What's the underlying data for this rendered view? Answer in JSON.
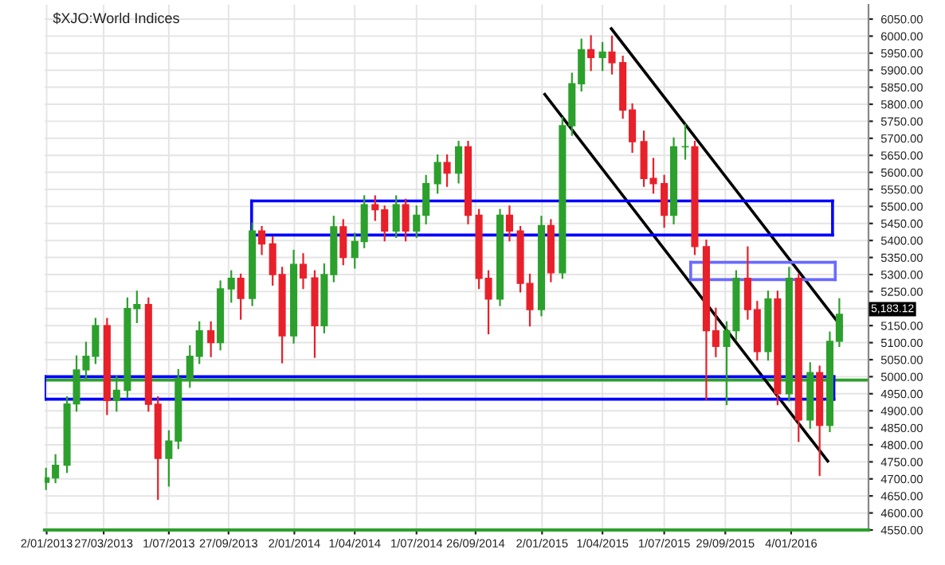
{
  "chart_data": {
    "type": "candlestick",
    "title": "$XJO:World Indices",
    "x": [
      "2013-01-01",
      "2013-01-15",
      "2013-02-01",
      "2013-02-15",
      "2013-03-01",
      "2013-03-15",
      "2013-04-01",
      "2013-04-15",
      "2013-05-01",
      "2013-05-15",
      "2013-06-01",
      "2013-06-15",
      "2013-07-01",
      "2013-07-15",
      "2013-08-01",
      "2013-08-15",
      "2013-09-01",
      "2013-09-15",
      "2013-10-01",
      "2013-10-15",
      "2013-11-01",
      "2013-11-15",
      "2013-12-01",
      "2013-12-15",
      "2014-01-01",
      "2014-01-15",
      "2014-02-01",
      "2014-02-15",
      "2014-03-01",
      "2014-03-15",
      "2014-04-01",
      "2014-04-15",
      "2014-05-01",
      "2014-05-15",
      "2014-06-01",
      "2014-06-15",
      "2014-07-01",
      "2014-07-15",
      "2014-08-01",
      "2014-08-15",
      "2014-09-01",
      "2014-09-15",
      "2014-10-01",
      "2014-10-15",
      "2014-11-01",
      "2014-11-15",
      "2014-12-01",
      "2014-12-15",
      "2015-01-01",
      "2015-01-15",
      "2015-02-01",
      "2015-02-15",
      "2015-03-01",
      "2015-03-15",
      "2015-04-01",
      "2015-04-15",
      "2015-05-01",
      "2015-05-15",
      "2015-06-01",
      "2015-06-15",
      "2015-07-01",
      "2015-07-15",
      "2015-08-01",
      "2015-08-15",
      "2015-09-01",
      "2015-09-15",
      "2015-10-01",
      "2015-10-15",
      "2015-11-01",
      "2015-11-15",
      "2015-12-01",
      "2015-12-15",
      "2016-01-01",
      "2016-01-15",
      "2016-02-01",
      "2016-02-15",
      "2016-03-01",
      "2016-03-15"
    ],
    "ohlc": [
      [
        4690,
        4730,
        4670,
        4703
      ],
      [
        4703,
        4770,
        4690,
        4740
      ],
      [
        4740,
        4940,
        4720,
        4920
      ],
      [
        4920,
        5060,
        4900,
        5020
      ],
      [
        5020,
        5100,
        4990,
        5060
      ],
      [
        5060,
        5170,
        5040,
        5150
      ],
      [
        5150,
        5170,
        4890,
        4930
      ],
      [
        4930,
        5000,
        4900,
        4960
      ],
      [
        4960,
        5230,
        4940,
        5200
      ],
      [
        5200,
        5250,
        5160,
        5212
      ],
      [
        5212,
        5230,
        4900,
        4919
      ],
      [
        4919,
        4940,
        4641,
        4760
      ],
      [
        4760,
        4840,
        4680,
        4811
      ],
      [
        4811,
        5020,
        4790,
        4996
      ],
      [
        4996,
        5090,
        4970,
        5060
      ],
      [
        5060,
        5160,
        5040,
        5135
      ],
      [
        5135,
        5160,
        5060,
        5100
      ],
      [
        5100,
        5280,
        5080,
        5258
      ],
      [
        5258,
        5310,
        5220,
        5289
      ],
      [
        5289,
        5300,
        5170,
        5230
      ],
      [
        5230,
        5450,
        5210,
        5428
      ],
      [
        5428,
        5440,
        5360,
        5390
      ],
      [
        5390,
        5410,
        5270,
        5300
      ],
      [
        5300,
        5320,
        5042,
        5120
      ],
      [
        5120,
        5370,
        5100,
        5330
      ],
      [
        5330,
        5360,
        5260,
        5290
      ],
      [
        5290,
        5310,
        5058,
        5150
      ],
      [
        5150,
        5330,
        5130,
        5300
      ],
      [
        5300,
        5470,
        5280,
        5440
      ],
      [
        5440,
        5460,
        5330,
        5350
      ],
      [
        5350,
        5420,
        5320,
        5397
      ],
      [
        5397,
        5530,
        5380,
        5505
      ],
      [
        5505,
        5530,
        5460,
        5490
      ],
      [
        5490,
        5500,
        5400,
        5428
      ],
      [
        5428,
        5530,
        5410,
        5505
      ],
      [
        5505,
        5520,
        5400,
        5428
      ],
      [
        5428,
        5500,
        5410,
        5474
      ],
      [
        5474,
        5590,
        5450,
        5567
      ],
      [
        5567,
        5650,
        5540,
        5629
      ],
      [
        5629,
        5650,
        5560,
        5598
      ],
      [
        5598,
        5690,
        5570,
        5675
      ],
      [
        5675,
        5690,
        5450,
        5474
      ],
      [
        5474,
        5490,
        5260,
        5289
      ],
      [
        5289,
        5310,
        5127,
        5228
      ],
      [
        5228,
        5490,
        5210,
        5474
      ],
      [
        5474,
        5500,
        5400,
        5428
      ],
      [
        5428,
        5440,
        5250,
        5274
      ],
      [
        5274,
        5300,
        5150,
        5197
      ],
      [
        5197,
        5470,
        5180,
        5444
      ],
      [
        5444,
        5460,
        5280,
        5305
      ],
      [
        5305,
        5760,
        5290,
        5737
      ],
      [
        5737,
        5890,
        5710,
        5860
      ],
      [
        5860,
        5990,
        5840,
        5960
      ],
      [
        5960,
        6000,
        5900,
        5937
      ],
      [
        5937,
        5980,
        5900,
        5953
      ],
      [
        5953,
        5999,
        5890,
        5922
      ],
      [
        5922,
        5940,
        5760,
        5783
      ],
      [
        5783,
        5800,
        5660,
        5690
      ],
      [
        5690,
        5720,
        5560,
        5582
      ],
      [
        5582,
        5640,
        5540,
        5567
      ],
      [
        5567,
        5590,
        5440,
        5474
      ],
      [
        5474,
        5700,
        5450,
        5675
      ],
      [
        5675,
        5740,
        5640,
        5675
      ],
      [
        5675,
        5690,
        5360,
        5382
      ],
      [
        5382,
        5400,
        4934,
        5135
      ],
      [
        5135,
        5200,
        5060,
        5089
      ],
      [
        5089,
        5160,
        4919,
        5135
      ],
      [
        5135,
        5310,
        5110,
        5289
      ],
      [
        5289,
        5380,
        5170,
        5197
      ],
      [
        5197,
        5220,
        5050,
        5074
      ],
      [
        5074,
        5250,
        5050,
        5228
      ],
      [
        5228,
        5250,
        4919,
        4950
      ],
      [
        4950,
        5320,
        4930,
        5289
      ],
      [
        5289,
        5300,
        4811,
        4873
      ],
      [
        4873,
        5040,
        4850,
        5012
      ],
      [
        5012,
        5030,
        4711,
        4857
      ],
      [
        4857,
        5130,
        4840,
        5104
      ],
      [
        5104,
        5228,
        5090,
        5183.12
      ]
    ],
    "colors": [
      "#2ca02c",
      "#2ca02c",
      "#2ca02c",
      "#2ca02c",
      "#2ca02c",
      "#2ca02c",
      "#e8202a",
      "#2ca02c",
      "#2ca02c",
      "#2ca02c",
      "#e8202a",
      "#e8202a",
      "#2ca02c",
      "#2ca02c",
      "#2ca02c",
      "#2ca02c",
      "#e8202a",
      "#2ca02c",
      "#2ca02c",
      "#e8202a",
      "#2ca02c",
      "#e8202a",
      "#e8202a",
      "#e8202a",
      "#2ca02c",
      "#e8202a",
      "#e8202a",
      "#2ca02c",
      "#2ca02c",
      "#e8202a",
      "#2ca02c",
      "#2ca02c",
      "#e8202a",
      "#e8202a",
      "#2ca02c",
      "#e8202a",
      "#2ca02c",
      "#2ca02c",
      "#2ca02c",
      "#e8202a",
      "#2ca02c",
      "#e8202a",
      "#e8202a",
      "#e8202a",
      "#2ca02c",
      "#e8202a",
      "#e8202a",
      "#e8202a",
      "#2ca02c",
      "#e8202a",
      "#2ca02c",
      "#2ca02c",
      "#2ca02c",
      "#e8202a",
      "#2ca02c",
      "#e8202a",
      "#e8202a",
      "#e8202a",
      "#e8202a",
      "#e8202a",
      "#e8202a",
      "#2ca02c",
      "#2ca02c",
      "#e8202a",
      "#e8202a",
      "#e8202a",
      "#2ca02c",
      "#2ca02c",
      "#e8202a",
      "#e8202a",
      "#2ca02c",
      "#e8202a",
      "#2ca02c",
      "#e8202a",
      "#2ca02c",
      "#e8202a",
      "#2ca02c",
      "#2ca02c"
    ],
    "series": [
      {
        "type": "line",
        "color": "#000000",
        "x": [
          "2015-04-14",
          "2016-03-18"
        ],
        "values": [
          6022,
          5147
        ]
      },
      {
        "type": "line",
        "color": "#000000",
        "x": [
          "2015-01-06",
          "2016-02-27"
        ],
        "values": [
          5829,
          4752
        ]
      },
      {
        "type": "line",
        "color": "#0000ff",
        "x": [
          "2013-10-31",
          "2016-03-05"
        ],
        "values": [
          5516,
          5516
        ]
      },
      {
        "type": "line",
        "color": "#0000ff",
        "x": [
          "2013-10-31",
          "2016-03-05"
        ],
        "values": [
          5416,
          5416
        ]
      },
      {
        "type": "line",
        "color": "#6a6aff",
        "x": [
          "2015-08-09",
          "2016-03-09"
        ],
        "values": [
          5336,
          5336
        ]
      },
      {
        "type": "line",
        "color": "#6a6aff",
        "x": [
          "2015-08-09",
          "2016-03-09"
        ],
        "values": [
          5285,
          5285
        ]
      },
      {
        "type": "line",
        "color": "#0000ff",
        "x": [
          "2012-12-30",
          "2016-03-07"
        ],
        "values": [
          5000,
          5000
        ]
      },
      {
        "type": "line",
        "color": "#0000ff",
        "x": [
          "2012-12-30",
          "2016-03-07"
        ],
        "values": [
          4934,
          4934
        ]
      }
    ],
    "ref_lines": [
      {
        "axis": "y",
        "value": 4990,
        "color": "#2ca02c"
      }
    ],
    "annotations": [
      {
        "text": "5,183.12",
        "x": "2016-03-15",
        "y": 5183.12
      }
    ],
    "xlim": [
      "2012-12-30",
      "2016-04-27"
    ],
    "xticks": [
      {
        "value": "2013-01-02",
        "label": "2/01/2013"
      },
      {
        "value": "2013-03-27",
        "label": "27/03/2013"
      },
      {
        "value": "2013-07-01",
        "label": "1/07/2013"
      },
      {
        "value": "2013-09-27",
        "label": "27/09/2013"
      },
      {
        "value": "2014-01-02",
        "label": "2/01/2014"
      },
      {
        "value": "2014-04-01",
        "label": "1/04/2014"
      },
      {
        "value": "2014-07-01",
        "label": "1/07/2014"
      },
      {
        "value": "2014-09-26",
        "label": "26/09/2014"
      },
      {
        "value": "2015-01-02",
        "label": "2/01/2015"
      },
      {
        "value": "2015-04-01",
        "label": "1/04/2015"
      },
      {
        "value": "2015-07-01",
        "label": "1/07/2015"
      },
      {
        "value": "2015-09-29",
        "label": "29/09/2015"
      },
      {
        "value": "2016-01-04",
        "label": "4/01/2016"
      }
    ],
    "ylim": [
      4550,
      6092
    ],
    "yticks": [
      {
        "value": 4550,
        "label": "4550.00"
      },
      {
        "value": 4600,
        "label": "4600.00"
      },
      {
        "value": 4650,
        "label": "4650.00"
      },
      {
        "value": 4700,
        "label": "4700.00"
      },
      {
        "value": 4750,
        "label": "4750.00"
      },
      {
        "value": 4800,
        "label": "4800.00"
      },
      {
        "value": 4850,
        "label": "4850.00"
      },
      {
        "value": 4900,
        "label": "4900.00"
      },
      {
        "value": 4950,
        "label": "4950.00"
      },
      {
        "value": 5000,
        "label": "5000.00"
      },
      {
        "value": 5050,
        "label": "5050.00"
      },
      {
        "value": 5100,
        "label": "5100.00"
      },
      {
        "value": 5150,
        "label": "5150.00"
      },
      {
        "value": 5200,
        "label": null
      },
      {
        "value": 5250,
        "label": "5250.00"
      },
      {
        "value": 5300,
        "label": "5300.00"
      },
      {
        "value": 5350,
        "label": "5350.00"
      },
      {
        "value": 5400,
        "label": "5400.00"
      },
      {
        "value": 5450,
        "label": "5450.00"
      },
      {
        "value": 5500,
        "label": "5500.00"
      },
      {
        "value": 5550,
        "label": "5550.00"
      },
      {
        "value": 5600,
        "label": "5600.00"
      },
      {
        "value": 5650,
        "label": "5650.00"
      },
      {
        "value": 5700,
        "label": "5700.00"
      },
      {
        "value": 5750,
        "label": "5750.00"
      },
      {
        "value": 5800,
        "label": "5800.00"
      },
      {
        "value": 5850,
        "label": "5850.00"
      },
      {
        "value": 5900,
        "label": "5900.00"
      },
      {
        "value": 5950,
        "label": "5950.00"
      },
      {
        "value": 6000,
        "label": "6000.00"
      },
      {
        "value": 6050,
        "label": "6050.00"
      }
    ],
    "grid": true,
    "legend": false
  }
}
